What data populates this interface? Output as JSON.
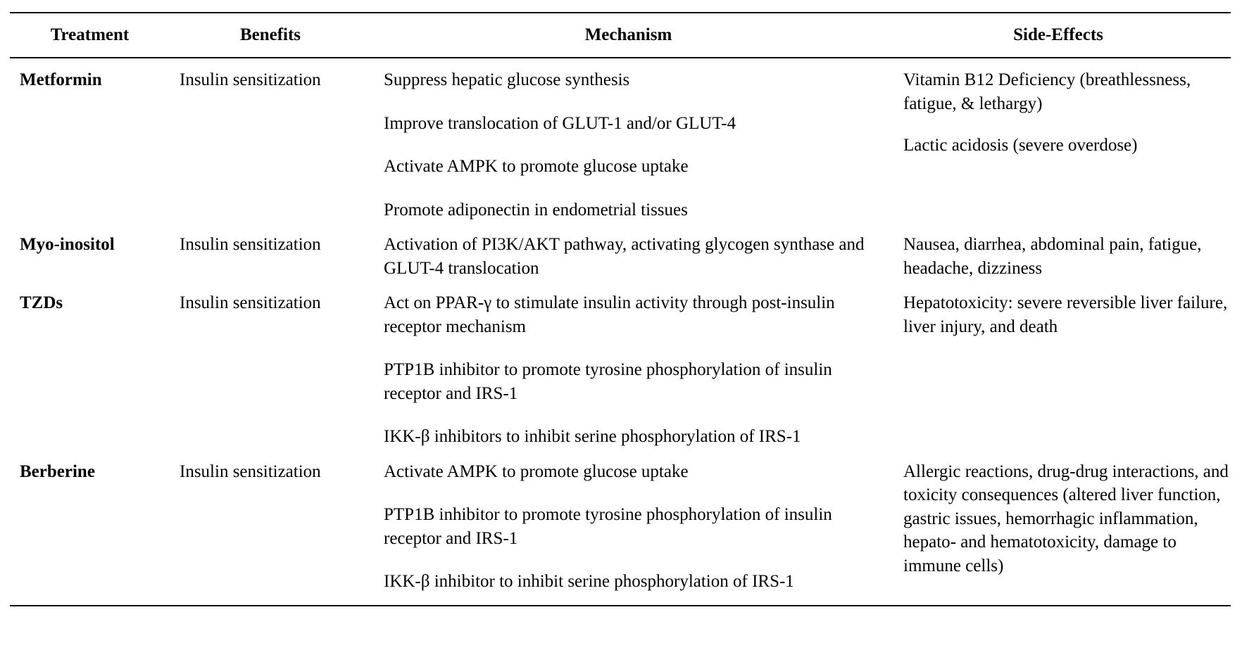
{
  "table": {
    "headers": [
      "Treatment",
      "Benefits",
      "Mechanism",
      "Side-Effects"
    ],
    "rows": [
      {
        "treatment": "Metformin",
        "benefits": "Insulin sensitization",
        "mechanism": [
          "Suppress hepatic glucose synthesis",
          "Improve translocation of GLUT-1 and/or GLUT-4",
          "Activate AMPK to promote glucose uptake",
          "Promote adiponectin in endometrial tissues"
        ],
        "side_effects": [
          "Vitamin B12 Deficiency (breathlessness, fatigue, & lethargy)",
          "Lactic acidosis (severe overdose)"
        ]
      },
      {
        "treatment": "Myo-inositol",
        "benefits": "Insulin sensitization",
        "mechanism": [
          "Activation of PI3K/AKT pathway, activating glycogen synthase and GLUT-4 translocation"
        ],
        "side_effects": [
          "Nausea, diarrhea, abdominal pain, fatigue, headache, dizziness"
        ]
      },
      {
        "treatment": "TZDs",
        "benefits": "Insulin sensitization",
        "mechanism": [
          "Act on PPAR-γ to stimulate insulin activity through post-insulin receptor mechanism",
          "PTP1B inhibitor to promote tyrosine phosphorylation of insulin receptor and IRS-1",
          "IKK-β inhibitors to inhibit serine phosphorylation of IRS-1"
        ],
        "side_effects": [
          "Hepatotoxicity: severe reversible liver failure, liver injury, and death"
        ]
      },
      {
        "treatment": "Berberine",
        "benefits": "Insulin sensitization",
        "mechanism": [
          "Activate AMPK to promote glucose uptake",
          "PTP1B inhibitor to promote tyrosine phosphorylation of insulin receptor and IRS-1",
          "IKK-β inhibitor to inhibit serine phosphorylation of IRS-1"
        ],
        "side_effects": [
          "Allergic reactions, drug-drug interactions, and toxicity consequences (altered liver function, gastric issues, hemorrhagic inflammation, hepato- and hematotoxicity, damage to immune cells)"
        ]
      }
    ]
  }
}
